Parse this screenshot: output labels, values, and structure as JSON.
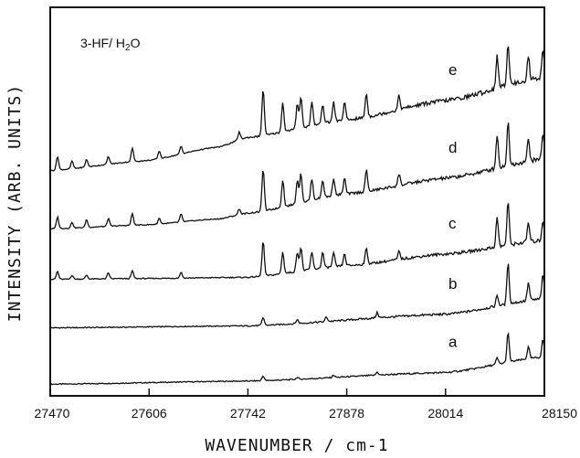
{
  "chart_data": {
    "type": "line",
    "annotation_main": "3-HF/ H",
    "annotation_sub": "2",
    "annotation_tail": "O",
    "xlabel": "WAVENUMBER / cm-1",
    "ylabel": "INTENSITY (ARB. UNITS)",
    "xlim": [
      27470,
      28150
    ],
    "ylim": [
      0,
      100
    ],
    "xticks": [
      27470,
      27606,
      27742,
      27878,
      28014,
      28150
    ],
    "xtick_labels": [
      "27470",
      "27606",
      "27742",
      "27878",
      "28014",
      "28150"
    ],
    "grid": false,
    "series": [
      {
        "name": "a",
        "baseline": [
          [
            27470,
            3.0
          ],
          [
            27742,
            3.8
          ],
          [
            28014,
            6.0
          ],
          [
            28150,
            10.0
          ]
        ],
        "peaks": [
          [
            27763,
            1.2
          ],
          [
            27810,
            0.5
          ],
          [
            27860,
            0.6
          ],
          [
            27920,
            0.8
          ],
          [
            28085,
            1.6
          ],
          [
            28100,
            7.5
          ],
          [
            28128,
            3.0
          ],
          [
            28148,
            4.5
          ]
        ]
      },
      {
        "name": "b",
        "baseline": [
          [
            27470,
            17.5
          ],
          [
            27742,
            18.0
          ],
          [
            28014,
            21.0
          ],
          [
            28150,
            25.0
          ]
        ],
        "peaks": [
          [
            27763,
            2.0
          ],
          [
            27810,
            1.0
          ],
          [
            27850,
            1.2
          ],
          [
            27920,
            1.3
          ],
          [
            28085,
            2.8
          ],
          [
            28100,
            10.5
          ],
          [
            28128,
            4.5
          ],
          [
            28148,
            6.0
          ]
        ]
      },
      {
        "name": "c",
        "baseline": [
          [
            27470,
            30.0
          ],
          [
            27600,
            30.2
          ],
          [
            27742,
            30.5
          ],
          [
            27878,
            33.5
          ],
          [
            28014,
            36.5
          ],
          [
            28150,
            40.0
          ]
        ],
        "peaks": [
          [
            27480,
            2.0
          ],
          [
            27500,
            1.0
          ],
          [
            27520,
            1.0
          ],
          [
            27550,
            1.5
          ],
          [
            27583,
            2.0
          ],
          [
            27650,
            1.5
          ],
          [
            27763,
            9.0
          ],
          [
            27790,
            5.5
          ],
          [
            27810,
            5.0
          ],
          [
            27815,
            6.0
          ],
          [
            27830,
            4.5
          ],
          [
            27845,
            4.0
          ],
          [
            27860,
            3.5
          ],
          [
            27875,
            3.0
          ],
          [
            27905,
            4.0
          ],
          [
            27950,
            2.0
          ],
          [
            28085,
            7.5
          ],
          [
            28100,
            11.0
          ],
          [
            28128,
            5.0
          ],
          [
            28148,
            5.0
          ]
        ]
      },
      {
        "name": "d",
        "baseline": [
          [
            27470,
            43.0
          ],
          [
            27600,
            44.0
          ],
          [
            27700,
            45.5
          ],
          [
            27742,
            47.0
          ],
          [
            27878,
            52.0
          ],
          [
            28014,
            56.0
          ],
          [
            28150,
            61.0
          ]
        ],
        "peaks": [
          [
            27480,
            3.0
          ],
          [
            27500,
            1.5
          ],
          [
            27520,
            2.0
          ],
          [
            27550,
            2.0
          ],
          [
            27583,
            3.0
          ],
          [
            27620,
            1.5
          ],
          [
            27650,
            2.0
          ],
          [
            27730,
            1.5
          ],
          [
            27763,
            11.0
          ],
          [
            27790,
            7.0
          ],
          [
            27810,
            6.0
          ],
          [
            27815,
            7.5
          ],
          [
            27830,
            5.5
          ],
          [
            27845,
            4.5
          ],
          [
            27860,
            4.5
          ],
          [
            27875,
            4.0
          ],
          [
            27905,
            5.5
          ],
          [
            27950,
            3.0
          ],
          [
            28085,
            8.5
          ],
          [
            28100,
            11.0
          ],
          [
            28128,
            5.5
          ],
          [
            28148,
            6.5
          ]
        ]
      },
      {
        "name": "e",
        "baseline": [
          [
            27470,
            58.0
          ],
          [
            27600,
            60.5
          ],
          [
            27700,
            64.0
          ],
          [
            27742,
            66.5
          ],
          [
            27878,
            71.0
          ],
          [
            28014,
            76.0
          ],
          [
            28150,
            82.0
          ]
        ],
        "peaks": [
          [
            27480,
            3.5
          ],
          [
            27500,
            2.0
          ],
          [
            27520,
            2.0
          ],
          [
            27550,
            2.0
          ],
          [
            27583,
            3.5
          ],
          [
            27620,
            2.0
          ],
          [
            27650,
            2.0
          ],
          [
            27730,
            2.0
          ],
          [
            27763,
            12.0
          ],
          [
            27790,
            7.5
          ],
          [
            27810,
            6.5
          ],
          [
            27815,
            8.0
          ],
          [
            27830,
            6.0
          ],
          [
            27845,
            5.0
          ],
          [
            27860,
            5.0
          ],
          [
            27875,
            4.5
          ],
          [
            27905,
            6.0
          ],
          [
            27950,
            3.5
          ],
          [
            28085,
            8.5
          ],
          [
            28100,
            11.0
          ],
          [
            28128,
            6.0
          ],
          [
            28148,
            7.0
          ]
        ]
      }
    ]
  }
}
